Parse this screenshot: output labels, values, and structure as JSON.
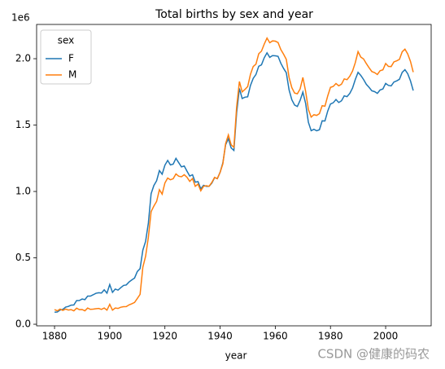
{
  "chart_data": {
    "type": "line",
    "title": "Total births by sex and year",
    "x_label": "year",
    "y_offset_label": "1e6",
    "legend_title": "sex",
    "legend": "upper left",
    "grid": false,
    "watermark": "CSDN @健康的码农",
    "x": [
      1880,
      1881,
      1882,
      1883,
      1884,
      1885,
      1886,
      1887,
      1888,
      1889,
      1890,
      1891,
      1892,
      1893,
      1894,
      1895,
      1896,
      1897,
      1898,
      1899,
      1900,
      1901,
      1902,
      1903,
      1904,
      1905,
      1906,
      1907,
      1908,
      1909,
      1910,
      1911,
      1912,
      1913,
      1914,
      1915,
      1916,
      1917,
      1918,
      1919,
      1920,
      1921,
      1922,
      1923,
      1924,
      1925,
      1926,
      1927,
      1928,
      1929,
      1930,
      1931,
      1932,
      1933,
      1934,
      1935,
      1936,
      1937,
      1938,
      1939,
      1940,
      1941,
      1942,
      1943,
      1944,
      1945,
      1946,
      1947,
      1948,
      1949,
      1950,
      1951,
      1952,
      1953,
      1954,
      1955,
      1956,
      1957,
      1958,
      1959,
      1960,
      1961,
      1962,
      1963,
      1964,
      1965,
      1966,
      1967,
      1968,
      1969,
      1970,
      1971,
      1972,
      1973,
      1974,
      1975,
      1976,
      1977,
      1978,
      1979,
      1980,
      1981,
      1982,
      1983,
      1984,
      1985,
      1986,
      1987,
      1988,
      1989,
      1990,
      1991,
      1992,
      1993,
      1994,
      1995,
      1996,
      1997,
      1998,
      1999,
      2000,
      2001,
      2002,
      2003,
      2004,
      2005,
      2006,
      2007,
      2008,
      2009,
      2010
    ],
    "series": [
      {
        "name": "F",
        "color": "#1f77b4",
        "values": [
          0.091,
          0.092,
          0.107,
          0.112,
          0.129,
          0.134,
          0.144,
          0.145,
          0.178,
          0.179,
          0.19,
          0.185,
          0.212,
          0.212,
          0.222,
          0.233,
          0.237,
          0.235,
          0.259,
          0.234,
          0.299,
          0.24,
          0.265,
          0.257,
          0.275,
          0.292,
          0.296,
          0.318,
          0.334,
          0.348,
          0.397,
          0.419,
          0.558,
          0.624,
          0.761,
          0.983,
          1.045,
          1.081,
          1.157,
          1.13,
          1.198,
          1.234,
          1.2,
          1.206,
          1.249,
          1.217,
          1.185,
          1.192,
          1.153,
          1.116,
          1.126,
          1.07,
          1.074,
          1.02,
          1.046,
          1.039,
          1.039,
          1.063,
          1.104,
          1.097,
          1.144,
          1.215,
          1.352,
          1.397,
          1.328,
          1.309,
          1.594,
          1.776,
          1.7,
          1.71,
          1.713,
          1.798,
          1.852,
          1.881,
          1.943,
          1.954,
          2.007,
          2.044,
          2.01,
          2.023,
          2.022,
          2.018,
          1.966,
          1.927,
          1.894,
          1.765,
          1.691,
          1.651,
          1.64,
          1.686,
          1.748,
          1.663,
          1.521,
          1.458,
          1.468,
          1.457,
          1.465,
          1.532,
          1.531,
          1.605,
          1.659,
          1.668,
          1.693,
          1.67,
          1.683,
          1.72,
          1.714,
          1.738,
          1.779,
          1.843,
          1.897,
          1.874,
          1.843,
          1.807,
          1.784,
          1.758,
          1.752,
          1.739,
          1.765,
          1.772,
          1.814,
          1.799,
          1.795,
          1.824,
          1.833,
          1.845,
          1.897,
          1.917,
          1.887,
          1.833,
          1.76
        ]
      },
      {
        "name": "M",
        "color": "#ff7f0e",
        "values": [
          0.11,
          0.101,
          0.114,
          0.104,
          0.114,
          0.107,
          0.11,
          0.101,
          0.121,
          0.11,
          0.111,
          0.101,
          0.122,
          0.112,
          0.114,
          0.117,
          0.119,
          0.112,
          0.122,
          0.106,
          0.15,
          0.106,
          0.122,
          0.119,
          0.128,
          0.132,
          0.133,
          0.146,
          0.154,
          0.164,
          0.194,
          0.225,
          0.429,
          0.512,
          0.654,
          0.848,
          0.89,
          0.925,
          1.013,
          0.98,
          1.064,
          1.101,
          1.088,
          1.096,
          1.132,
          1.115,
          1.111,
          1.126,
          1.107,
          1.076,
          1.097,
          1.039,
          1.056,
          1.005,
          1.039,
          1.043,
          1.039,
          1.068,
          1.106,
          1.096,
          1.144,
          1.208,
          1.361,
          1.426,
          1.352,
          1.333,
          1.637,
          1.828,
          1.75,
          1.768,
          1.79,
          1.882,
          1.941,
          1.959,
          2.037,
          2.057,
          2.11,
          2.155,
          2.12,
          2.134,
          2.132,
          2.122,
          2.069,
          2.034,
          1.995,
          1.859,
          1.782,
          1.741,
          1.736,
          1.772,
          1.859,
          1.754,
          1.618,
          1.56,
          1.578,
          1.573,
          1.586,
          1.646,
          1.642,
          1.719,
          1.784,
          1.791,
          1.813,
          1.796,
          1.808,
          1.848,
          1.842,
          1.868,
          1.907,
          1.97,
          2.053,
          2.012,
          1.998,
          1.963,
          1.932,
          1.903,
          1.895,
          1.881,
          1.91,
          1.916,
          1.964,
          1.942,
          1.941,
          1.976,
          1.984,
          1.995,
          2.052,
          2.072,
          2.036,
          1.98,
          1.899
        ]
      }
    ],
    "xlim": [
      1873.5,
      2016.5
    ],
    "xticks": [
      1880,
      1900,
      1920,
      1940,
      1960,
      1980,
      2000
    ],
    "ylim": [
      -0.012,
      2.258
    ],
    "yticks": [
      {
        "value": 0,
        "label": "0.0"
      },
      {
        "value": 0.5,
        "label": "0.5"
      },
      {
        "value": 1,
        "label": "1.0"
      },
      {
        "value": 1.5,
        "label": "1.5"
      },
      {
        "value": 2,
        "label": "2.0"
      }
    ]
  }
}
